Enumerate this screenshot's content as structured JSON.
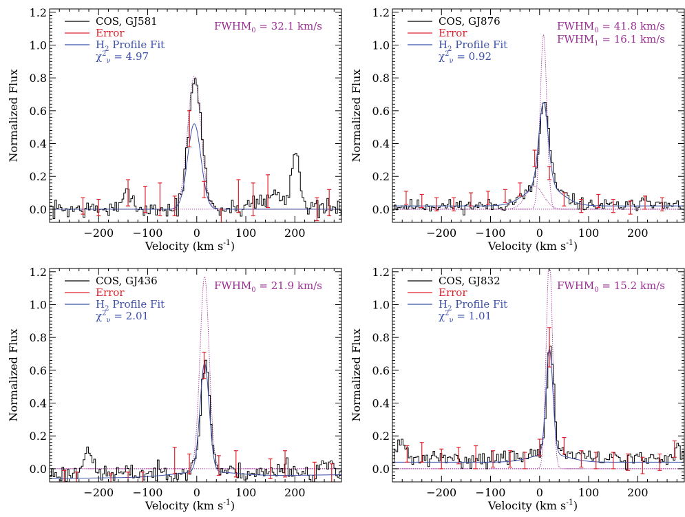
{
  "colors": {
    "data": "#000000",
    "error": "#e0202a",
    "fit": "#3a4fa8",
    "component": "#9b2f95"
  },
  "chart_data": [
    {
      "type": "line",
      "xlabel": "Velocity (km s",
      "xlabel_sup": "-1",
      "xlabel_end": ")",
      "ylabel": "Normalized Flux",
      "xlim": [
        -300,
        295
      ],
      "ylim": [
        -0.08,
        1.22
      ],
      "xticks": [
        -200,
        -100,
        0,
        100,
        200
      ],
      "yticks": [
        0.0,
        0.2,
        0.4,
        0.6,
        0.8,
        1.0,
        1.2
      ],
      "yticklabels": [
        "0.0",
        "0.2",
        "0.4",
        "0.6",
        "0.8",
        "1.0",
        "1.2"
      ],
      "legend": {
        "data": "COS, GJ581",
        "error": "Error",
        "fit_pre": "H",
        "fit_sub": "2",
        "fit_post": " Profile Fit",
        "chi_pre": "χ",
        "chi_sup": "2",
        "chi_sub": "ν",
        "chi_val": " = 4.97"
      },
      "fwhm": [
        {
          "pre": "FWHM",
          "sub": "0",
          "post": " = 32.1 km/s"
        }
      ],
      "line": {
        "center": -5,
        "sigma": 13.6,
        "amp": 0.78,
        "base": 0.0,
        "noise": 0.035,
        "seed": 7,
        "extra": [
          {
            "x": 200,
            "w": 9,
            "a": 0.36
          },
          {
            "x": -140,
            "w": 8,
            "a": 0.12
          },
          {
            "x": 160,
            "w": 12,
            "a": 0.1
          },
          {
            "x": 120,
            "w": 15,
            "a": 0.06
          }
        ]
      },
      "fit": {
        "center": -5,
        "sigma": 13.6,
        "amp": 0.52,
        "base": 0.0,
        "halo_sigma": 0,
        "halo_amp": 0
      },
      "components": [
        {
          "center": -5,
          "sigma": 13.6,
          "amp": 0.81
        }
      ],
      "errorbars": [
        {
          "x": -232,
          "y": 0.02,
          "e": 0.05
        },
        {
          "x": -200,
          "y": 0.01,
          "e": 0.05
        },
        {
          "x": -140,
          "y": 0.1,
          "e": 0.08
        },
        {
          "x": -105,
          "y": 0.06,
          "e": 0.08
        },
        {
          "x": -75,
          "y": 0.06,
          "e": 0.1
        },
        {
          "x": -45,
          "y": 0.02,
          "e": 0.06
        },
        {
          "x": -15,
          "y": 0.49,
          "e": 0.11
        },
        {
          "x": 15,
          "y": 0.12,
          "e": 0.05
        },
        {
          "x": 50,
          "y": -0.04,
          "e": 0.04
        },
        {
          "x": 85,
          "y": 0.08,
          "e": 0.1
        },
        {
          "x": 115,
          "y": 0.06,
          "e": 0.1
        },
        {
          "x": 145,
          "y": 0.11,
          "e": 0.1
        },
        {
          "x": 245,
          "y": 0.0,
          "e": 0.07
        },
        {
          "x": 270,
          "y": 0.04,
          "e": 0.08
        }
      ]
    },
    {
      "type": "line",
      "xlabel": "Velocity (km s",
      "xlabel_sup": "-1",
      "xlabel_end": ")",
      "ylabel": "Normalized Flux",
      "xlim": [
        -300,
        295
      ],
      "ylim": [
        -0.08,
        1.22
      ],
      "xticks": [
        -200,
        -100,
        0,
        100,
        200
      ],
      "yticks": [
        0.0,
        0.2,
        0.4,
        0.6,
        0.8,
        1.0,
        1.2
      ],
      "yticklabels": [
        "0.0",
        "0.2",
        "0.4",
        "0.6",
        "0.8",
        "1.0",
        "1.2"
      ],
      "legend": {
        "data": "COS, GJ876",
        "error": "Error",
        "fit_pre": "H",
        "fit_sub": "2",
        "fit_post": " Profile Fit",
        "chi_pre": "χ",
        "chi_sup": "2",
        "chi_sub": "ν",
        "chi_val": " = 0.92"
      },
      "fwhm": [
        {
          "pre": "FWHM",
          "sub": "0",
          "post": " = 41.8 km/s"
        },
        {
          "pre": "FWHM",
          "sub": "1",
          "post": " = 16.1 km/s"
        }
      ],
      "line": {
        "center": 8,
        "sigma": 9.5,
        "amp": 0.5,
        "base": 0.02,
        "noise": 0.025,
        "seed": 11,
        "halo_sigma": 35,
        "halo_amp": 0.13,
        "extra": [
          {
            "x": 215,
            "w": 10,
            "a": 0.06
          }
        ]
      },
      "fit": {
        "center": 8,
        "sigma": 9.5,
        "amp": 0.5,
        "base": 0.02,
        "halo_sigma": 35,
        "halo_amp": 0.13
      },
      "components": [
        {
          "center": 8,
          "sigma": 6.8,
          "amp": 1.06
        },
        {
          "center": -10,
          "sigma": 17.8,
          "amp": 0.14
        }
      ],
      "errorbars": [
        {
          "x": -272,
          "y": 0.07,
          "e": 0.04
        },
        {
          "x": -240,
          "y": 0.05,
          "e": 0.04
        },
        {
          "x": -210,
          "y": 0.03,
          "e": 0.04
        },
        {
          "x": -175,
          "y": 0.03,
          "e": 0.04
        },
        {
          "x": -140,
          "y": 0.06,
          "e": 0.04
        },
        {
          "x": -105,
          "y": 0.07,
          "e": 0.04
        },
        {
          "x": -70,
          "y": 0.08,
          "e": 0.04
        },
        {
          "x": -40,
          "y": 0.12,
          "e": 0.04
        },
        {
          "x": -10,
          "y": 0.31,
          "e": 0.05
        },
        {
          "x": 20,
          "y": 0.22,
          "e": 0.04
        },
        {
          "x": 50,
          "y": 0.06,
          "e": 0.04
        },
        {
          "x": 85,
          "y": 0.02,
          "e": 0.04
        },
        {
          "x": 120,
          "y": 0.05,
          "e": 0.04
        },
        {
          "x": 150,
          "y": 0.02,
          "e": 0.04
        },
        {
          "x": 185,
          "y": 0.01,
          "e": 0.04
        },
        {
          "x": 215,
          "y": 0.04,
          "e": 0.04
        },
        {
          "x": 250,
          "y": 0.03,
          "e": 0.04
        }
      ]
    },
    {
      "type": "line",
      "xlabel": "Velocity (km s",
      "xlabel_sup": "-1",
      "xlabel_end": ")",
      "ylabel": "Normalized Flux",
      "xlim": [
        -300,
        295
      ],
      "ylim": [
        -0.08,
        1.22
      ],
      "xticks": [
        -200,
        -100,
        0,
        100,
        200
      ],
      "yticks": [
        -0.0001,
        0.2,
        0.4,
        0.6,
        0.8,
        1.0,
        1.2
      ],
      "yticklabels": [
        "0.0",
        "0.2",
        "0.4",
        "0.6",
        "0.8",
        "1.0",
        "1.2"
      ],
      "legend": {
        "data": "COS, GJ436",
        "error": "Error",
        "fit_pre": "H",
        "fit_sub": "2",
        "fit_post": " Profile Fit",
        "chi_pre": "χ",
        "chi_sup": "2",
        "chi_sub": "ν",
        "chi_val": " = 2.01"
      },
      "fwhm": [
        {
          "pre": "FWHM",
          "sub": "0",
          "post": " = 21.9 km/s"
        }
      ],
      "line": {
        "center": 16,
        "sigma": 9.3,
        "amp": 0.66,
        "base": -0.03,
        "noise": 0.035,
        "seed": 23,
        "halo_sigma": 60,
        "halo_amp": 0.02,
        "extra": [
          {
            "x": -225,
            "w": 8,
            "a": 0.17
          },
          {
            "x": 180,
            "w": 14,
            "a": 0.05
          },
          {
            "x": 260,
            "w": 10,
            "a": 0.06
          }
        ]
      },
      "fit": {
        "center": 16,
        "sigma": 9.3,
        "amp": 0.66,
        "base": -0.06,
        "halo_sigma": 60,
        "halo_amp": 0.03,
        "slope": 0.0001
      },
      "components": [
        {
          "center": 16,
          "sigma": 9.3,
          "amp": 1.17
        }
      ],
      "errorbars": [
        {
          "x": -270,
          "y": -0.05,
          "e": 0.04
        },
        {
          "x": -245,
          "y": -0.06,
          "e": 0.04
        },
        {
          "x": -175,
          "y": -0.07,
          "e": 0.04
        },
        {
          "x": -140,
          "y": -0.06,
          "e": 0.04
        },
        {
          "x": -110,
          "y": -0.06,
          "e": 0.04
        },
        {
          "x": -45,
          "y": 0.05,
          "e": 0.08
        },
        {
          "x": -15,
          "y": 0.03,
          "e": 0.06
        },
        {
          "x": 15,
          "y": 0.63,
          "e": 0.08
        },
        {
          "x": 45,
          "y": 0.02,
          "e": 0.06
        },
        {
          "x": 80,
          "y": 0.03,
          "e": 0.08
        },
        {
          "x": 150,
          "y": 0.0,
          "e": 0.06
        },
        {
          "x": 180,
          "y": 0.03,
          "e": 0.08
        },
        {
          "x": 240,
          "y": -0.02,
          "e": 0.06
        },
        {
          "x": 275,
          "y": -0.03,
          "e": 0.06
        }
      ]
    },
    {
      "type": "line",
      "xlabel": "Velocity (km s",
      "xlabel_sup": "-1",
      "xlabel_end": ")",
      "ylabel": "Normalized Flux",
      "xlim": [
        -300,
        295
      ],
      "ylim": [
        -0.08,
        1.22
      ],
      "xticks": [
        -200,
        -100,
        0,
        100,
        200
      ],
      "yticks": [
        0.0,
        0.2,
        0.4,
        0.6,
        0.8,
        1.0,
        1.2
      ],
      "yticklabels": [
        "0.0",
        "0.2",
        "0.4",
        "0.6",
        "0.8",
        "1.0",
        "1.2"
      ],
      "legend": {
        "data": "COS, GJ832",
        "error": "Error",
        "fit_pre": "H",
        "fit_sub": "2",
        "fit_post": " Profile Fit",
        "chi_pre": "χ",
        "chi_sup": "2",
        "chi_sub": "ν",
        "chi_val": " = 1.01"
      },
      "fwhm": [
        {
          "pre": "FWHM",
          "sub": "0",
          "post": " = 15.2 km/s"
        }
      ],
      "line": {
        "center": 20,
        "sigma": 7.0,
        "amp": 0.66,
        "base": 0.06,
        "noise": 0.03,
        "seed": 31,
        "halo_sigma": 38,
        "halo_amp": 0.05,
        "extra": [
          {
            "x": -285,
            "w": 10,
            "a": 0.09
          },
          {
            "x": 280,
            "w": 8,
            "a": 0.07
          }
        ]
      },
      "fit": {
        "center": 20,
        "sigma": 7.0,
        "amp": 0.64,
        "base": 0.04,
        "halo_sigma": 38,
        "halo_amp": 0.05
      },
      "components": [
        {
          "center": 20,
          "sigma": 6.4,
          "amp": 1.28
        }
      ],
      "errorbars": [
        {
          "x": -270,
          "y": 0.09,
          "e": 0.05
        },
        {
          "x": -240,
          "y": 0.1,
          "e": 0.06
        },
        {
          "x": -200,
          "y": 0.06,
          "e": 0.06
        },
        {
          "x": -165,
          "y": 0.08,
          "e": 0.05
        },
        {
          "x": -130,
          "y": 0.07,
          "e": 0.07
        },
        {
          "x": -95,
          "y": 0.06,
          "e": 0.05
        },
        {
          "x": -60,
          "y": 0.06,
          "e": 0.05
        },
        {
          "x": -30,
          "y": 0.05,
          "e": 0.05
        },
        {
          "x": 0,
          "y": 0.13,
          "e": 0.05
        },
        {
          "x": 20,
          "y": 0.74,
          "e": 0.12
        },
        {
          "x": 50,
          "y": 0.14,
          "e": 0.05
        },
        {
          "x": 85,
          "y": 0.06,
          "e": 0.05
        },
        {
          "x": 115,
          "y": 0.05,
          "e": 0.05
        },
        {
          "x": 150,
          "y": 0.05,
          "e": 0.05
        },
        {
          "x": 180,
          "y": 0.04,
          "e": 0.05
        },
        {
          "x": 210,
          "y": 0.02,
          "e": 0.05
        },
        {
          "x": 245,
          "y": 0.04,
          "e": 0.05
        },
        {
          "x": 275,
          "y": 0.12,
          "e": 0.05
        }
      ]
    }
  ]
}
